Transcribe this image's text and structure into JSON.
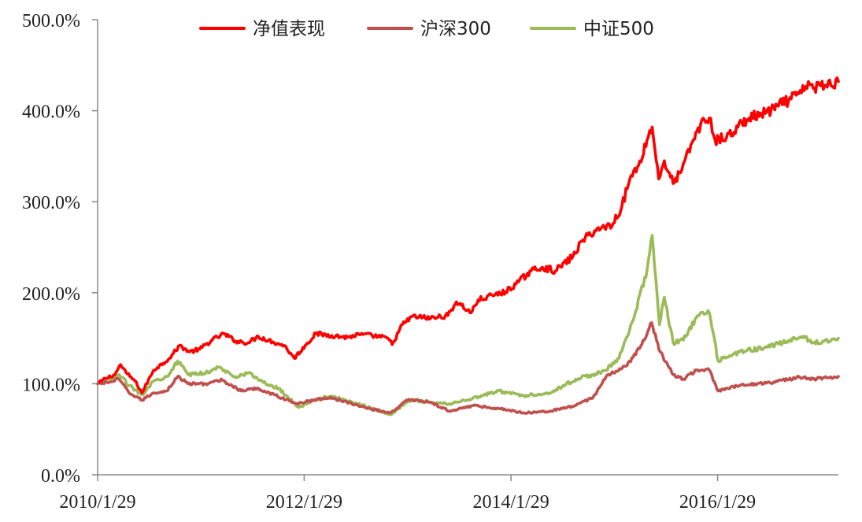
{
  "chart_data": {
    "type": "line",
    "title": "",
    "xlabel": "",
    "ylabel": "",
    "ylim": [
      0,
      500
    ],
    "y_ticks": [
      "0.0%",
      "100.0%",
      "200.0%",
      "300.0%",
      "400.0%",
      "500.0%"
    ],
    "x_tick_labels": [
      "2010/1/29",
      "2012/1/29",
      "2014/1/29",
      "2016/1/29"
    ],
    "x_range": [
      "2010-01-29",
      "2017-03-31"
    ],
    "grid": false,
    "legend_position": "top-center",
    "series": [
      {
        "name": "净值表现",
        "color": "#ff0000",
        "points": [
          [
            "2010-01-29",
            100
          ],
          [
            "2010-02-26",
            106
          ],
          [
            "2010-03-31",
            110
          ],
          [
            "2010-04-20",
            121
          ],
          [
            "2010-05-10",
            112
          ],
          [
            "2010-06-10",
            103
          ],
          [
            "2010-07-05",
            90
          ],
          [
            "2010-08-15",
            115
          ],
          [
            "2010-10-10",
            128
          ],
          [
            "2010-11-15",
            142
          ],
          [
            "2010-12-20",
            135
          ],
          [
            "2011-01-25",
            138
          ],
          [
            "2011-03-10",
            148
          ],
          [
            "2011-04-20",
            155
          ],
          [
            "2011-05-31",
            147
          ],
          [
            "2011-07-15",
            145
          ],
          [
            "2011-08-20",
            152
          ],
          [
            "2011-10-10",
            146
          ],
          [
            "2011-11-20",
            142
          ],
          [
            "2011-12-25",
            128
          ],
          [
            "2012-02-10",
            145
          ],
          [
            "2012-03-10",
            155
          ],
          [
            "2012-05-05",
            153
          ],
          [
            "2012-06-30",
            151
          ],
          [
            "2012-08-10",
            154
          ],
          [
            "2012-09-25",
            153
          ],
          [
            "2012-11-20",
            150
          ],
          [
            "2012-12-05",
            143
          ],
          [
            "2013-01-10",
            165
          ],
          [
            "2013-02-15",
            174
          ],
          [
            "2013-04-20",
            172
          ],
          [
            "2013-06-20",
            175
          ],
          [
            "2013-07-20",
            190
          ],
          [
            "2013-09-10",
            178
          ],
          [
            "2013-10-05",
            192
          ],
          [
            "2013-11-25",
            197
          ],
          [
            "2014-01-10",
            201
          ],
          [
            "2014-02-25",
            212
          ],
          [
            "2014-04-10",
            224
          ],
          [
            "2014-05-20",
            228
          ],
          [
            "2014-07-05",
            224
          ],
          [
            "2014-09-05",
            240
          ],
          [
            "2014-10-10",
            258
          ],
          [
            "2014-11-20",
            268
          ],
          [
            "2014-12-25",
            272
          ],
          [
            "2015-01-25",
            276
          ],
          [
            "2015-02-25",
            295
          ],
          [
            "2015-03-25",
            325
          ],
          [
            "2015-04-25",
            340
          ],
          [
            "2015-05-25",
            368
          ],
          [
            "2015-06-12",
            382
          ],
          [
            "2015-07-05",
            325
          ],
          [
            "2015-07-25",
            345
          ],
          [
            "2015-08-25",
            320
          ],
          [
            "2015-09-25",
            335
          ],
          [
            "2015-10-31",
            365
          ],
          [
            "2015-11-30",
            385
          ],
          [
            "2015-12-31",
            392
          ],
          [
            "2016-01-20",
            368
          ],
          [
            "2016-02-29",
            370
          ],
          [
            "2016-04-10",
            382
          ],
          [
            "2016-05-20",
            392
          ],
          [
            "2016-07-15",
            397
          ],
          [
            "2016-08-31",
            405
          ],
          [
            "2016-10-15",
            413
          ],
          [
            "2016-11-30",
            422
          ],
          [
            "2016-12-15",
            432
          ],
          [
            "2017-01-05",
            425
          ],
          [
            "2017-02-15",
            428
          ],
          [
            "2017-03-31",
            432
          ]
        ]
      },
      {
        "name": "沪深300",
        "color": "#c0504d",
        "points": [
          [
            "2010-01-29",
            100
          ],
          [
            "2010-03-15",
            102
          ],
          [
            "2010-04-15",
            105
          ],
          [
            "2010-05-20",
            90
          ],
          [
            "2010-07-05",
            82
          ],
          [
            "2010-08-15",
            90
          ],
          [
            "2010-09-30",
            92
          ],
          [
            "2010-11-08",
            108
          ],
          [
            "2010-12-15",
            100
          ],
          [
            "2011-02-15",
            100
          ],
          [
            "2011-04-15",
            104
          ],
          [
            "2011-06-20",
            92
          ],
          [
            "2011-08-15",
            95
          ],
          [
            "2011-10-15",
            88
          ],
          [
            "2011-12-31",
            78
          ],
          [
            "2012-03-01",
            82
          ],
          [
            "2012-05-01",
            85
          ],
          [
            "2012-07-15",
            78
          ],
          [
            "2012-09-25",
            72
          ],
          [
            "2012-11-30",
            68
          ],
          [
            "2013-02-01",
            83
          ],
          [
            "2013-04-15",
            80
          ],
          [
            "2013-06-25",
            70
          ],
          [
            "2013-09-15",
            76
          ],
          [
            "2013-12-15",
            73
          ],
          [
            "2014-03-15",
            68
          ],
          [
            "2014-06-15",
            70
          ],
          [
            "2014-09-15",
            76
          ],
          [
            "2014-11-15",
            85
          ],
          [
            "2014-12-31",
            108
          ],
          [
            "2015-03-15",
            120
          ],
          [
            "2015-05-15",
            148
          ],
          [
            "2015-06-10",
            167
          ],
          [
            "2015-07-10",
            135
          ],
          [
            "2015-08-25",
            110
          ],
          [
            "2015-09-30",
            105
          ],
          [
            "2015-11-15",
            115
          ],
          [
            "2015-12-31",
            115
          ],
          [
            "2016-01-31",
            92
          ],
          [
            "2016-04-15",
            98
          ],
          [
            "2016-08-15",
            102
          ],
          [
            "2016-11-15",
            107
          ],
          [
            "2016-12-31",
            105
          ],
          [
            "2017-03-31",
            108
          ]
        ]
      },
      {
        "name": "中证500",
        "color": "#9bbb59",
        "points": [
          [
            "2010-01-29",
            100
          ],
          [
            "2010-03-15",
            105
          ],
          [
            "2010-04-15",
            110
          ],
          [
            "2010-05-20",
            98
          ],
          [
            "2010-07-05",
            88
          ],
          [
            "2010-08-15",
            103
          ],
          [
            "2010-09-30",
            108
          ],
          [
            "2010-11-08",
            125
          ],
          [
            "2010-12-15",
            110
          ],
          [
            "2011-02-15",
            112
          ],
          [
            "2011-03-31",
            118
          ],
          [
            "2011-05-31",
            108
          ],
          [
            "2011-07-15",
            112
          ],
          [
            "2011-09-15",
            100
          ],
          [
            "2011-10-31",
            95
          ],
          [
            "2012-01-10",
            74
          ],
          [
            "2012-03-01",
            82
          ],
          [
            "2012-05-01",
            86
          ],
          [
            "2012-07-15",
            80
          ],
          [
            "2012-09-25",
            73
          ],
          [
            "2012-12-01",
            66
          ],
          [
            "2013-02-01",
            82
          ],
          [
            "2013-04-15",
            80
          ],
          [
            "2013-06-25",
            78
          ],
          [
            "2013-09-15",
            84
          ],
          [
            "2013-12-15",
            92
          ],
          [
            "2014-03-15",
            87
          ],
          [
            "2014-06-15",
            90
          ],
          [
            "2014-09-15",
            105
          ],
          [
            "2014-11-15",
            110
          ],
          [
            "2014-12-31",
            115
          ],
          [
            "2015-02-15",
            128
          ],
          [
            "2015-04-15",
            180
          ],
          [
            "2015-05-25",
            225
          ],
          [
            "2015-06-12",
            263
          ],
          [
            "2015-07-08",
            165
          ],
          [
            "2015-07-25",
            195
          ],
          [
            "2015-08-25",
            145
          ],
          [
            "2015-09-30",
            148
          ],
          [
            "2015-11-20",
            175
          ],
          [
            "2015-12-31",
            178
          ],
          [
            "2016-01-31",
            125
          ],
          [
            "2016-04-15",
            135
          ],
          [
            "2016-07-15",
            140
          ],
          [
            "2016-09-15",
            145
          ],
          [
            "2016-11-25",
            152
          ],
          [
            "2016-12-31",
            145
          ],
          [
            "2017-03-31",
            150
          ]
        ]
      }
    ]
  }
}
